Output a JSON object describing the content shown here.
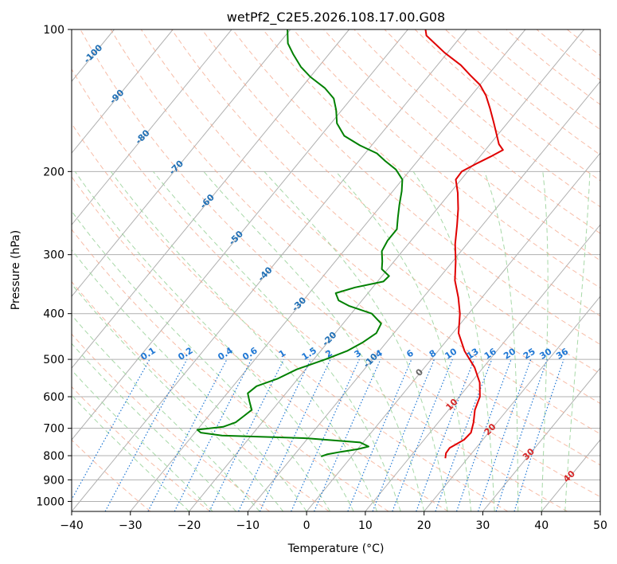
{
  "chart_data": {
    "type": "line",
    "subtype": "skew-t log-p diagram",
    "title": "wetPf2_C2E5.2026.108.17.00.G08",
    "xlabel": "Temperature (°C)",
    "ylabel": "Pressure (hPa)",
    "xlim": [
      -40,
      50
    ],
    "ylim": [
      1050,
      100
    ],
    "y_scale": "log",
    "grid": true,
    "x_ticks": [
      "−40",
      "−30",
      "−20",
      "−10",
      "0",
      "10",
      "20",
      "30",
      "40",
      "50"
    ],
    "y_ticks": [
      "100",
      "200",
      "300",
      "400",
      "500",
      "600",
      "700",
      "800",
      "900",
      "1000"
    ],
    "series": [
      {
        "color": "#e00000",
        "points": [
          [
            16.2,
            810
          ],
          [
            15.6,
            790
          ],
          [
            15.5,
            770
          ],
          [
            16.8,
            740
          ],
          [
            17.0,
            715
          ],
          [
            16.0,
            680
          ],
          [
            14.5,
            640
          ],
          [
            13.5,
            600
          ],
          [
            11.5,
            560
          ],
          [
            8.5,
            520
          ],
          [
            4.5,
            480
          ],
          [
            1.0,
            440
          ],
          [
            -1.5,
            400
          ],
          [
            -4.0,
            370
          ],
          [
            -7.0,
            340
          ],
          [
            -9.5,
            310
          ],
          [
            -12.0,
            285
          ],
          [
            -14.3,
            260
          ],
          [
            -16.4,
            240
          ],
          [
            -18.7,
            222
          ],
          [
            -20.9,
            208
          ],
          [
            -21.0,
            200
          ],
          [
            -19.5,
            192
          ],
          [
            -18.2,
            186
          ],
          [
            -17.0,
            180
          ],
          [
            -18.5,
            175
          ],
          [
            -20.0,
            168
          ],
          [
            -22.5,
            157
          ],
          [
            -25.0,
            147
          ],
          [
            -27.5,
            138
          ],
          [
            -30.0,
            131
          ],
          [
            -33.0,
            125
          ],
          [
            -36.0,
            119
          ],
          [
            -40.5,
            112
          ],
          [
            -46.0,
            103
          ],
          [
            -47.0,
            100
          ]
        ]
      },
      {
        "color": "#008000",
        "points": [
          [
            -5.2,
            803
          ],
          [
            -4.5,
            795
          ],
          [
            -2.5,
            785
          ],
          [
            0.0,
            775
          ],
          [
            1.5,
            765
          ],
          [
            -0.5,
            750
          ],
          [
            -10.0,
            735
          ],
          [
            -25.0,
            725
          ],
          [
            -29.0,
            715
          ],
          [
            -30.0,
            705
          ],
          [
            -26.0,
            695
          ],
          [
            -24.5,
            680
          ],
          [
            -24.0,
            660
          ],
          [
            -23.5,
            640
          ],
          [
            -25.0,
            615
          ],
          [
            -26.5,
            590
          ],
          [
            -26.0,
            570
          ],
          [
            -23.5,
            550
          ],
          [
            -21.5,
            525
          ],
          [
            -18.0,
            500
          ],
          [
            -15.5,
            480
          ],
          [
            -14.0,
            460
          ],
          [
            -13.0,
            440
          ],
          [
            -13.5,
            420
          ],
          [
            -16.5,
            400
          ],
          [
            -21.5,
            385
          ],
          [
            -24.0,
            375
          ],
          [
            -25.5,
            362
          ],
          [
            -23.0,
            352
          ],
          [
            -19.0,
            342
          ],
          [
            -18.8,
            333
          ],
          [
            -21.0,
            322
          ],
          [
            -22.0,
            310
          ],
          [
            -23.5,
            295
          ],
          [
            -24.0,
            280
          ],
          [
            -24.0,
            265
          ],
          [
            -25.5,
            250
          ],
          [
            -27.0,
            235
          ],
          [
            -28.5,
            220
          ],
          [
            -30.0,
            208
          ],
          [
            -32.5,
            198
          ],
          [
            -35.5,
            190
          ],
          [
            -38.0,
            183
          ],
          [
            -42.0,
            176
          ],
          [
            -46.0,
            168
          ],
          [
            -49.0,
            158
          ],
          [
            -51.0,
            148
          ],
          [
            -53.0,
            140
          ],
          [
            -56.0,
            133
          ],
          [
            -60.0,
            126
          ],
          [
            -63.0,
            120
          ],
          [
            -66.0,
            113
          ],
          [
            -68.5,
            107
          ],
          [
            -70.5,
            100
          ]
        ]
      }
    ],
    "isotherm_labels": [
      "-100",
      "-90",
      "-80",
      "-70",
      "-60",
      "-50",
      "-40",
      "-30",
      "-20",
      "-10",
      "0",
      "10",
      "20",
      "30",
      "40"
    ],
    "isotherm_label_values": [
      -100,
      -90,
      -80,
      -70,
      -60,
      -50,
      -40,
      -30,
      -20,
      -10,
      0,
      10,
      20,
      30,
      40
    ],
    "mixing_ratio_labels": [
      "0.1",
      "0.2",
      "0.4",
      "0.6",
      "1",
      "1.5",
      "2",
      "3",
      "4",
      "6",
      "8",
      "10",
      "13",
      "16",
      "20",
      "25",
      "30",
      "36"
    ],
    "mixing_ratio_values": [
      0.1,
      0.2,
      0.4,
      0.6,
      1,
      1.5,
      2,
      3,
      4,
      6,
      8,
      10,
      13,
      16,
      20,
      25,
      30,
      36
    ],
    "colors": {
      "isotherm": "#b0b0b0",
      "isobar": "#b0b0b0",
      "dry_adiabat": "#f4a58a",
      "moist_adiabat": "#9dd49d",
      "mixing_ratio": "#1f77d4",
      "isotherm_label_cold": "#1f6fb5",
      "isotherm_label_zero": "#666666",
      "isotherm_label_warm": "#d62728",
      "dry_adiabat_labels": "#d9b99a"
    }
  }
}
